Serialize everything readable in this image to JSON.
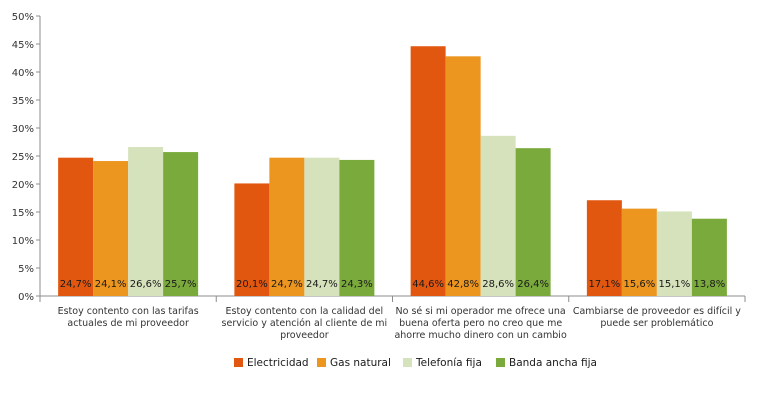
{
  "chart_data": {
    "type": "bar",
    "title": "",
    "xlabel": "",
    "ylabel": "",
    "ylim": [
      0,
      50
    ],
    "y_ticks": [
      "0%",
      "5%",
      "10%",
      "15%",
      "20%",
      "25%",
      "30%",
      "35%",
      "40%",
      "45%",
      "50%"
    ],
    "y_tick_values": [
      0,
      5,
      10,
      15,
      20,
      25,
      30,
      35,
      40,
      45,
      50
    ],
    "grid": false,
    "legend_position": "bottom",
    "categories": [
      [
        "Estoy contento con las tarifas",
        "actuales de mi proveedor"
      ],
      [
        "Estoy contento con la calidad del",
        "servicio y atención al cliente de mi",
        "proveedor"
      ],
      [
        "No sé si mi operador me ofrece una",
        "buena oferta pero no creo que me",
        "ahorre mucho dinero con un cambio"
      ],
      [
        "Cambiarse de proveedor es difícil y",
        "puede ser problemático"
      ]
    ],
    "series": [
      {
        "name": "Electricidad",
        "color": "#e2570f",
        "values": [
          24.7,
          20.1,
          44.6,
          17.1
        ],
        "labels": [
          "24,7%",
          "20,1%",
          "44,6%",
          "17,1%"
        ]
      },
      {
        "name": "Gas natural",
        "color": "#ec951f",
        "values": [
          24.1,
          24.7,
          42.8,
          15.6
        ],
        "labels": [
          "24,1%",
          "24,7%",
          "42,8%",
          "15,6%"
        ]
      },
      {
        "name": "Telefonía fija",
        "color": "#d5e2bb",
        "values": [
          26.6,
          24.7,
          28.6,
          15.1
        ],
        "labels": [
          "26,6%",
          "24,7%",
          "28,6%",
          "15,1%"
        ]
      },
      {
        "name": "Banda ancha fija",
        "color": "#7aaa3c",
        "values": [
          25.7,
          24.3,
          26.4,
          13.8
        ],
        "labels": [
          "25,7%",
          "24,3%",
          "26,4%",
          "13,8%"
        ]
      }
    ]
  }
}
